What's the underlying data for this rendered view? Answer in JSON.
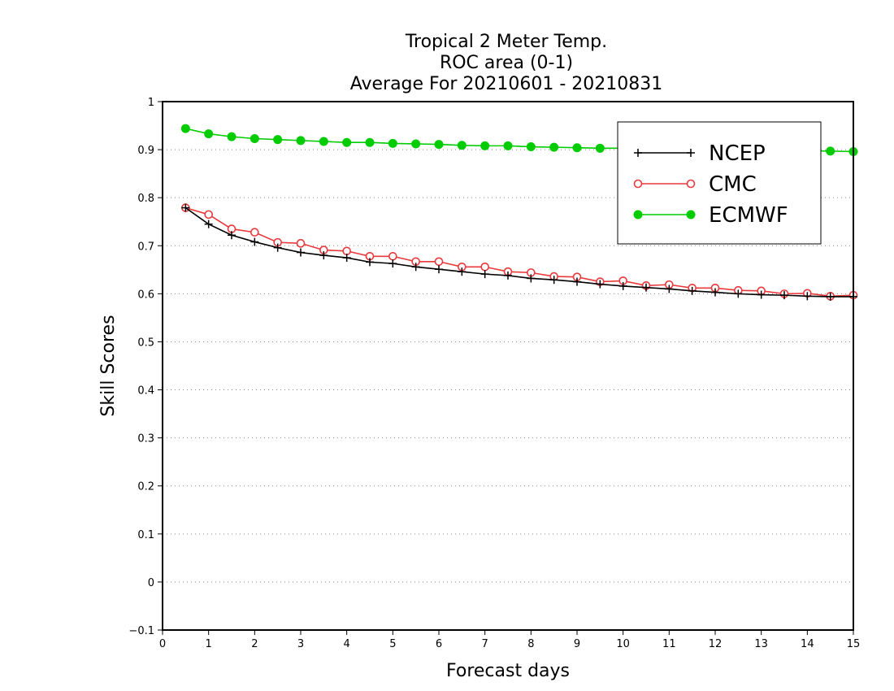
{
  "chart_data": {
    "type": "line",
    "title": [
      "Tropical 2 Meter Temp.",
      "ROC area (0-1)",
      "Average For 20210601 - 20210831"
    ],
    "xlabel": "Forecast days",
    "ylabel": "Skill Scores",
    "xlim": [
      0,
      15
    ],
    "ylim": [
      -0.1,
      1
    ],
    "xticks": [
      "0",
      "1",
      "2",
      "3",
      "4",
      "5",
      "6",
      "7",
      "8",
      "9",
      "10",
      "11",
      "12",
      "13",
      "14",
      "15"
    ],
    "yticks": [
      "−0.1",
      "0",
      "0.1",
      "0.2",
      "0.3",
      "0.4",
      "0.5",
      "0.6",
      "0.7",
      "0.8",
      "0.9",
      "1"
    ],
    "grid": true,
    "legend_position": "top-right",
    "x": [
      0.5,
      1,
      1.5,
      2,
      2.5,
      3,
      3.5,
      4,
      4.5,
      5,
      5.5,
      6,
      6.5,
      7,
      7.5,
      8,
      8.5,
      9,
      9.5,
      10,
      10.5,
      11,
      11.5,
      12,
      12.5,
      13,
      13.5,
      14,
      14.5,
      15
    ],
    "series": [
      {
        "name": "NCEP",
        "color": "#000000",
        "marker": "plus",
        "values": [
          0.779,
          0.745,
          0.722,
          0.708,
          0.696,
          0.686,
          0.68,
          0.675,
          0.666,
          0.663,
          0.656,
          0.651,
          0.646,
          0.641,
          0.638,
          0.632,
          0.629,
          0.625,
          0.62,
          0.616,
          0.613,
          0.61,
          0.606,
          0.603,
          0.6,
          0.598,
          0.597,
          0.595,
          0.594,
          0.594
        ]
      },
      {
        "name": "CMC",
        "color": "#e8393c",
        "marker": "open-circle",
        "values": [
          0.779,
          0.765,
          0.735,
          0.728,
          0.707,
          0.705,
          0.691,
          0.689,
          0.678,
          0.678,
          0.667,
          0.667,
          0.656,
          0.656,
          0.646,
          0.644,
          0.636,
          0.635,
          0.625,
          0.627,
          0.617,
          0.619,
          0.612,
          0.612,
          0.607,
          0.606,
          0.6,
          0.601,
          0.595,
          0.597
        ]
      },
      {
        "name": "ECMWF",
        "color": "#00cc00",
        "marker": "filled-circle",
        "values": [
          0.944,
          0.933,
          0.927,
          0.923,
          0.921,
          0.919,
          0.917,
          0.915,
          0.915,
          0.913,
          0.912,
          0.911,
          0.909,
          0.908,
          0.908,
          0.906,
          0.905,
          0.904,
          0.903,
          0.903,
          0.902,
          0.901,
          0.901,
          0.9,
          0.899,
          0.899,
          0.898,
          0.898,
          0.897,
          0.896
        ]
      }
    ]
  }
}
